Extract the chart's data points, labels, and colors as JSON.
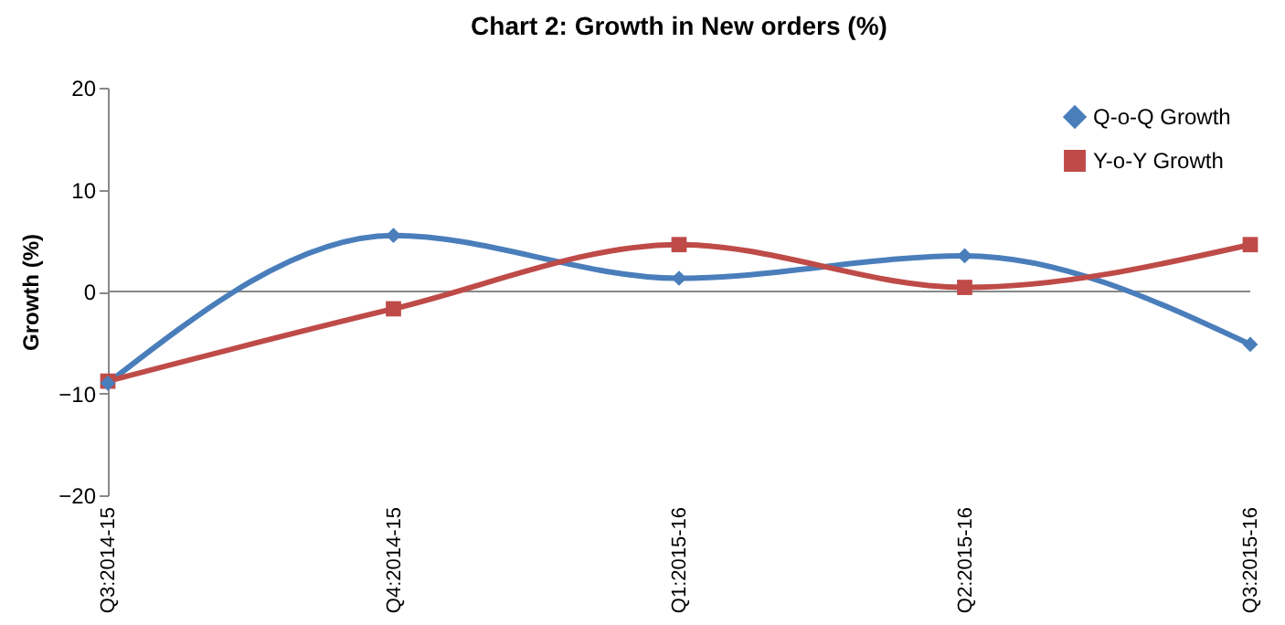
{
  "chart_data": {
    "type": "line",
    "title": "Chart 2: Growth in New orders (%)",
    "ylabel": "Growth (%)",
    "categories": [
      "Q3:2014-15",
      "Q4:2014-15",
      "Q1:2015-16",
      "Q2:2015-16",
      "Q3:2015-16"
    ],
    "series": [
      {
        "name": "Q-o-Q Growth",
        "color": "#4a7ebb",
        "marker": "diamond",
        "values": [
          -9,
          5.5,
          1.3,
          3.5,
          -5.2
        ]
      },
      {
        "name": "Y-o-Y Growth",
        "color": "#be4b48",
        "marker": "square",
        "values": [
          -8.8,
          -1.7,
          4.6,
          0.4,
          4.6
        ]
      }
    ],
    "ylim": [
      -20,
      20
    ],
    "yticks": [
      -20,
      -10,
      0,
      10,
      20
    ],
    "grid": false,
    "ref_lines": [
      {
        "axis": "y",
        "value": 0,
        "color": "#888888"
      }
    ],
    "legend": "top right"
  }
}
